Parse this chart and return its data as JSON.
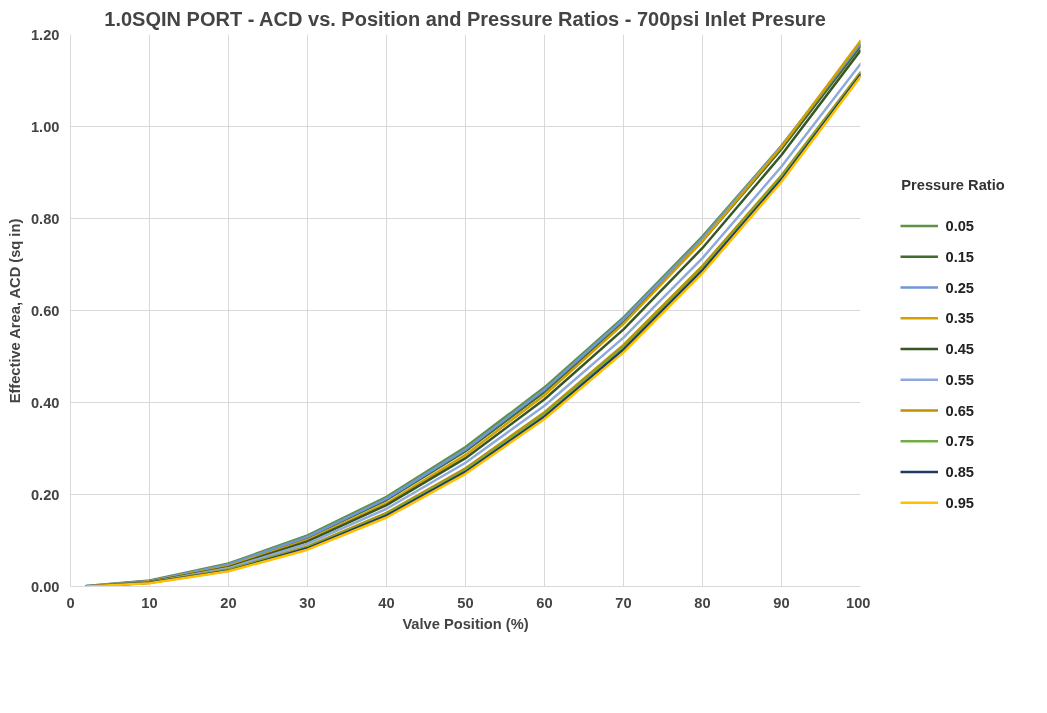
{
  "chart_data": {
    "type": "line",
    "title": "1.0SQIN PORT - ACD vs. Position and Pressure Ratios - 700psi Inlet Presure",
    "xlabel": "Valve Position (%)",
    "ylabel": "Effective Area, ACD (sq in)",
    "legend_title": "Pressure Ratio",
    "x": [
      2,
      10,
      20,
      30,
      40,
      50,
      60,
      70,
      80,
      90,
      100
    ],
    "series": [
      {
        "name": "0.05",
        "color": "#5e9145",
        "values": [
          0.001,
          0.013,
          0.05,
          0.111,
          0.195,
          0.303,
          0.433,
          0.585,
          0.761,
          0.958,
          1.178
        ]
      },
      {
        "name": "0.15",
        "color": "#436b2c",
        "values": [
          0.0,
          0.012,
          0.047,
          0.106,
          0.188,
          0.294,
          0.423,
          0.575,
          0.751,
          0.951,
          1.174
        ]
      },
      {
        "name": "0.25",
        "color": "#6f96d8",
        "values": [
          0.001,
          0.012,
          0.048,
          0.108,
          0.191,
          0.298,
          0.428,
          0.581,
          0.757,
          0.958,
          1.18
        ]
      },
      {
        "name": "0.35",
        "color": "#d4a000",
        "values": [
          0.0,
          0.011,
          0.044,
          0.101,
          0.181,
          0.286,
          0.416,
          0.571,
          0.751,
          0.956,
          1.186
        ]
      },
      {
        "name": "0.45",
        "color": "#375623",
        "values": [
          0.0,
          0.01,
          0.042,
          0.098,
          0.177,
          0.279,
          0.407,
          0.559,
          0.736,
          0.938,
          1.165
        ]
      },
      {
        "name": "0.55",
        "color": "#8eaadb",
        "values": [
          0.0,
          0.009,
          0.04,
          0.093,
          0.169,
          0.269,
          0.393,
          0.541,
          0.714,
          0.913,
          1.136
        ]
      },
      {
        "name": "0.65",
        "color": "#bf9000",
        "values": [
          0.0,
          0.008,
          0.037,
          0.087,
          0.16,
          0.257,
          0.379,
          0.525,
          0.697,
          0.894,
          1.118
        ]
      },
      {
        "name": "0.75",
        "color": "#70ad47",
        "values": [
          0.0,
          0.008,
          0.036,
          0.085,
          0.157,
          0.253,
          0.374,
          0.52,
          0.691,
          0.89,
          1.115
        ]
      },
      {
        "name": "0.85",
        "color": "#203864",
        "values": [
          0.0,
          0.008,
          0.034,
          0.083,
          0.154,
          0.249,
          0.369,
          0.515,
          0.687,
          0.885,
          1.112
        ]
      },
      {
        "name": "0.95",
        "color": "#ffc000",
        "values": [
          0.0,
          0.007,
          0.033,
          0.08,
          0.15,
          0.245,
          0.364,
          0.509,
          0.681,
          0.88,
          1.108
        ]
      }
    ],
    "xlim": [
      0,
      100
    ],
    "xticks": [
      0,
      10,
      20,
      30,
      40,
      50,
      60,
      70,
      80,
      90,
      100
    ],
    "ylim": [
      0,
      1.2
    ],
    "yticks": [
      {
        "value": 0,
        "label": "0.00"
      },
      {
        "value": 0.2,
        "label": "0.20"
      },
      {
        "value": 0.4,
        "label": "0.40"
      },
      {
        "value": 0.6,
        "label": "0.60"
      },
      {
        "value": 0.8,
        "label": "0.80"
      },
      {
        "value": 1.0,
        "label": "1.00"
      },
      {
        "value": 1.2,
        "label": "1.20"
      }
    ],
    "grid": true,
    "legend": "right",
    "marker": "none",
    "line_style": "solid"
  }
}
